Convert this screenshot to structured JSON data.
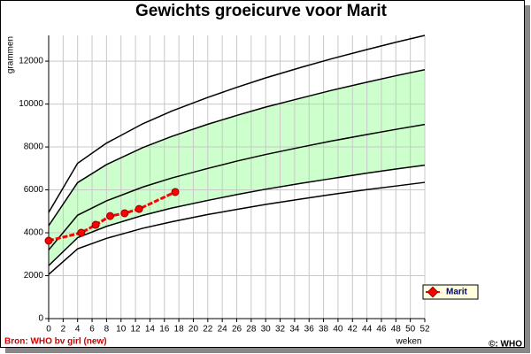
{
  "chart_data": {
    "type": "line",
    "title": "Gewichts groeicurve voor Marit",
    "y_label": "grammen",
    "x_label": "weken",
    "source": "Bron: WHO bv girl (new)",
    "copyright": "©: WHO",
    "xlim": [
      0,
      52
    ],
    "ylim": [
      0,
      13200
    ],
    "xticks": [
      0,
      2,
      4,
      6,
      8,
      10,
      12,
      14,
      16,
      18,
      20,
      22,
      24,
      26,
      28,
      30,
      32,
      34,
      36,
      38,
      40,
      42,
      44,
      46,
      48,
      50,
      52
    ],
    "yticks": [
      0,
      2000,
      4000,
      6000,
      8000,
      10000,
      12000
    ],
    "grid": true,
    "band_color": "#ccffcc",
    "curve_x": [
      0,
      4,
      8,
      13,
      17,
      22,
      26,
      30,
      35,
      39,
      44,
      48,
      52
    ],
    "reference_curves": [
      {
        "color": "#000000",
        "values": [
          2060,
          3250,
          3740,
          4210,
          4510,
          4850,
          5090,
          5320,
          5580,
          5780,
          6010,
          6180,
          6350
        ]
      },
      {
        "color": "#000000",
        "values": [
          2470,
          3770,
          4300,
          4810,
          5150,
          5510,
          5780,
          6030,
          6310,
          6520,
          6780,
          6970,
          7150
        ]
      },
      {
        "color": "#000000",
        "values": [
          3200,
          4820,
          5490,
          6130,
          6550,
          7000,
          7340,
          7650,
          8000,
          8270,
          8580,
          8820,
          9050
        ]
      },
      {
        "color": "#000000",
        "values": [
          4330,
          6340,
          7180,
          7970,
          8490,
          9060,
          9470,
          9860,
          10290,
          10630,
          11020,
          11320,
          11600
        ]
      },
      {
        "color": "#000000",
        "values": [
          4950,
          7240,
          8180,
          9080,
          9670,
          10310,
          10780,
          11220,
          11720,
          12100,
          12540,
          12880,
          13200
        ]
      }
    ],
    "series": [
      {
        "name": "Marit",
        "color": "#ff0000",
        "x": [
          0,
          4.5,
          6.5,
          8.5,
          10.5,
          12.5,
          17.5
        ],
        "values": [
          3630,
          4000,
          4370,
          4780,
          4910,
          5110,
          5900
        ]
      }
    ],
    "legend": "bottom-right"
  }
}
